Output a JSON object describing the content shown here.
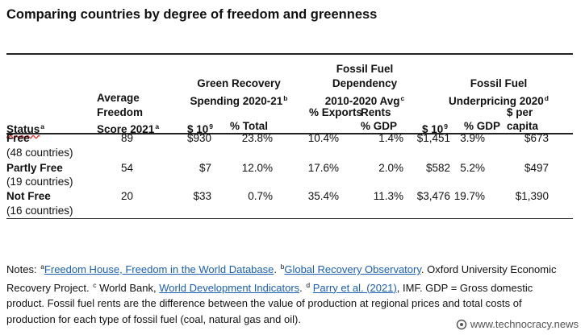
{
  "title": "Comparing countries by degree of freedom and greenness",
  "table": {
    "status_header": {
      "text": "Status",
      "sup": "a"
    },
    "freedom_header": [
      {
        "text": "Average"
      },
      {
        "text": "Freedom"
      },
      {
        "text": "Score 2021",
        "sup": "a"
      }
    ],
    "green_header": [
      {
        "text": "Green Recovery"
      },
      {
        "text": "Spending 2020-21",
        "sup": "b"
      }
    ],
    "dependency_header": [
      {
        "text": "Fossil Fuel"
      },
      {
        "text": "Dependency"
      },
      {
        "text": "2010-2020 Avg",
        "sup": "c"
      }
    ],
    "underpricing_header": [
      {
        "text": "Fossil Fuel"
      },
      {
        "text": "Underpricing 2020",
        "sup": "d"
      }
    ],
    "sub_headers": [
      [
        {
          "text": "$ 10",
          "sup": "9"
        }
      ],
      [
        {
          "text": "% Total"
        }
      ],
      [
        {
          "text": "% Exports"
        }
      ],
      [
        {
          "text": "Rents"
        },
        {
          "text": "% GDP"
        }
      ],
      [
        {
          "text": "$ 10",
          "sup": "9"
        }
      ],
      [
        {
          "text": "% GDP"
        }
      ],
      [
        {
          "text": "$ per"
        },
        {
          "text": "capita"
        }
      ]
    ],
    "rows": [
      {
        "status": "Free",
        "count": "(48 countries)",
        "cells": [
          "89",
          "$930",
          "23.8%",
          "10.4%",
          "1.4%",
          "$1,451",
          "3.9%",
          "$673"
        ]
      },
      {
        "status": "Partly Free",
        "count": "(19 countries)",
        "cells": [
          "54",
          "$7",
          "12.0%",
          "17.6%",
          "2.0%",
          "$582",
          "5.2%",
          "$497"
        ]
      },
      {
        "status": "Not Free",
        "count": "(16 countries)",
        "cells": [
          "20",
          "$33",
          "0.7%",
          "35.4%",
          "11.3%",
          "$3,476",
          "19.7%",
          "$1,390"
        ]
      }
    ]
  },
  "notes": [
    {
      "text": "Notes: "
    },
    {
      "sup": "a",
      "link": "Freedom House, Freedom in the World Database"
    },
    {
      "text": ". "
    },
    {
      "sup": "b",
      "link": "Global Recovery Observatory"
    },
    {
      "text": ". Oxford University Economic Recovery Project. "
    },
    {
      "sup": "c",
      "text": " World Bank, "
    },
    {
      "link": "World Development Indicators"
    },
    {
      "text": ". "
    },
    {
      "sup": "d",
      "text": " "
    },
    {
      "link": "Parry et al. (2021)"
    },
    {
      "text": ", IMF. GDP = Gross domestic product. Fossil fuel rents are the difference between the value of production at regional prices and total costs of production for each type of fossil fuel (coal, natural gas and oil)."
    }
  ],
  "watermark": "www.technocracy.news"
}
